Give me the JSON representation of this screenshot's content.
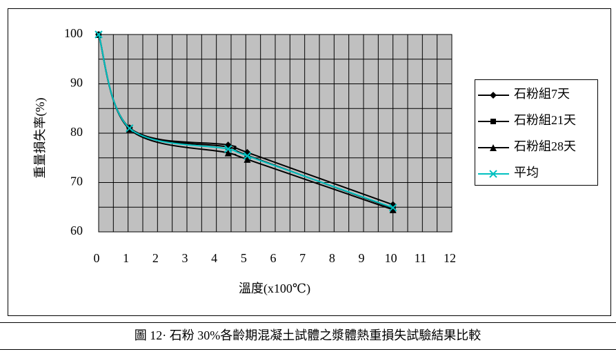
{
  "chart_data": {
    "type": "line",
    "y_label": "重量損失率(%)",
    "x_label": "溫度(x100℃)",
    "x": [
      0,
      1.05,
      4.4,
      5.05,
      10
    ],
    "xlim": [
      0,
      12
    ],
    "xticks": [
      0,
      1,
      2,
      3,
      4,
      5,
      6,
      7,
      8,
      9,
      10,
      11,
      12
    ],
    "ylim": [
      60,
      100
    ],
    "yticks": [
      60,
      70,
      80,
      90,
      100
    ],
    "grid": true,
    "minor_grid": true,
    "smooth": true,
    "legend": "right",
    "plot_background": "#c0c0c0",
    "series": [
      {
        "name": "石粉組7天",
        "color": "#000000",
        "marker": "diamond",
        "values": [
          100,
          81.1,
          77.6,
          76.1,
          65.5
        ]
      },
      {
        "name": "石粉組21天",
        "color": "#000000",
        "marker": "square",
        "values": [
          100,
          81,
          77.2,
          75.5,
          64.8
        ]
      },
      {
        "name": "石粉組28天",
        "color": "#000000",
        "marker": "triangle",
        "values": [
          100,
          80.8,
          76,
          74.7,
          64.5
        ]
      },
      {
        "name": "平均",
        "color": "#00c0c0",
        "marker": "x",
        "values": [
          100,
          81,
          76.8,
          75.4,
          64.9
        ]
      }
    ]
  },
  "caption": "圖 12· 石粉 30%各齡期混凝土試體之漿體熱重損失試驗結果比較"
}
